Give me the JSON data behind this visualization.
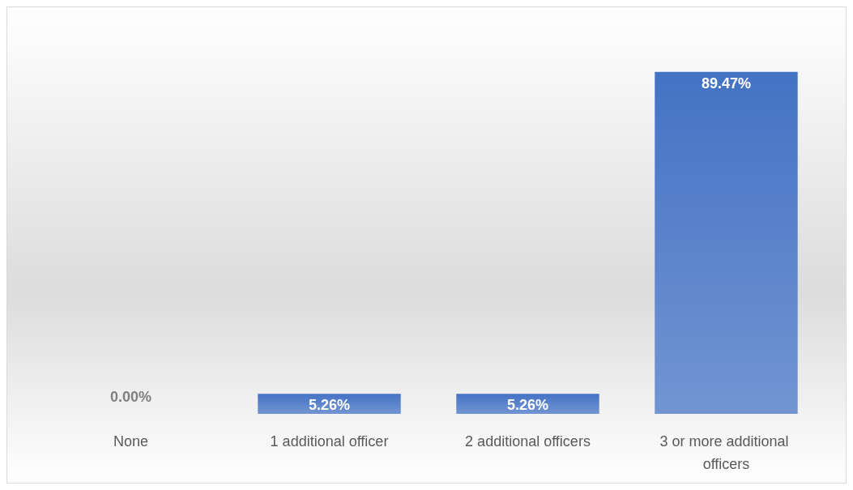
{
  "chart_data": {
    "type": "bar",
    "categories": [
      "None",
      "1 additional officer",
      "2 additional officers",
      "3 or more additional officers"
    ],
    "values": [
      0,
      5.26,
      5.26,
      89.47
    ],
    "color": "#4472c4",
    "value_labels": [
      "0.00%",
      "5.26%",
      "5.26%",
      "89.47%"
    ]
  }
}
